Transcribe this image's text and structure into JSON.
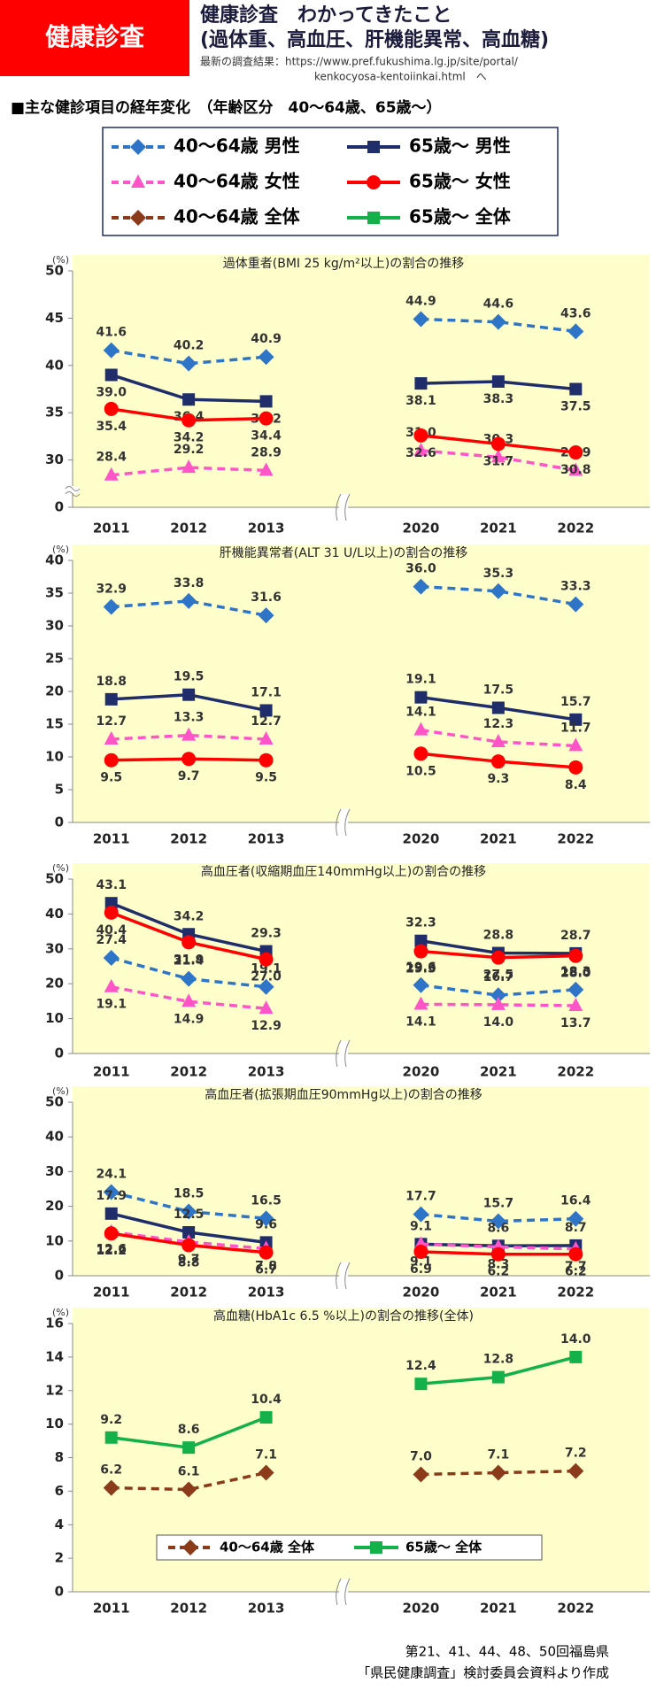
{
  "header": {
    "badge": "健康診査",
    "title": [
      "健康診査　わかってきたこと",
      "(過体重、高血圧、肝機能異常、高血糖)"
    ],
    "link": [
      "最新の調査結果：https://www.pref.fukushima.lg.jp/site/portal/",
      "kenkocyosa-kentoiinkai.html　へ"
    ]
  },
  "section_title": "■主な健診項目の経年変化　（年齢区分　40～64歳、65歳～）",
  "footer": [
    "第21、41、44、48、50回福島県",
    "「県民健康調査」検討委員会資料より作成"
  ],
  "chart_data": [
    {
      "type": "line",
      "title": "過体重者(BMI 25 kg/m²以上)の割合の推移",
      "y_unit": "(%)",
      "categories": [
        "2011",
        "2012",
        "2013",
        null,
        "2020",
        "2021",
        "2022"
      ],
      "ylim": [
        0,
        50
      ],
      "y_break": [
        0,
        25
      ],
      "yticks": [
        0,
        30,
        35,
        40,
        45,
        50
      ],
      "grid": false,
      "series": [
        {
          "name": "40～64歳 男性",
          "color": "#2e75c8",
          "marker": "diamond",
          "dash": true,
          "values": [
            41.6,
            40.2,
            40.9,
            null,
            44.9,
            44.6,
            43.6
          ],
          "value_labels": [
            "41.6",
            "40.2",
            "40.9",
            null,
            "44.9",
            "44.6",
            "43.6"
          ]
        },
        {
          "name": "65歳～ 男性",
          "color": "#1f2d6b",
          "marker": "square",
          "dash": false,
          "values": [
            39.0,
            36.4,
            36.2,
            null,
            38.1,
            38.3,
            37.5
          ],
          "value_labels": [
            "39.0",
            "36.4",
            "36.2",
            null,
            "38.1",
            "38.3",
            "37.5"
          ]
        },
        {
          "name": "40～64歳 女性",
          "color": "#ff55c8",
          "marker": "triangle",
          "dash": true,
          "values": [
            28.4,
            29.2,
            28.9,
            null,
            31.0,
            30.3,
            28.9
          ],
          "value_labels": [
            "28.4",
            "29.2",
            "28.9",
            null,
            "31.0",
            "30.3",
            "28.9"
          ]
        },
        {
          "name": "65歳～ 女性",
          "color": "#ff0000",
          "marker": "circle",
          "dash": false,
          "values": [
            35.4,
            34.2,
            34.4,
            null,
            32.6,
            31.7,
            30.8
          ],
          "value_labels": [
            "35.4",
            "34.2",
            "34.4",
            null,
            "32.6",
            "31.7",
            "30.8"
          ]
        }
      ]
    },
    {
      "type": "line",
      "title": "肝機能異常者(ALT 31 U/L以上)の割合の推移",
      "y_unit": "(%)",
      "categories": [
        "2011",
        "2012",
        "2013",
        null,
        "2020",
        "2021",
        "2022"
      ],
      "ylim": [
        0,
        40
      ],
      "yticks": [
        0,
        5,
        10,
        15,
        20,
        25,
        30,
        35,
        40
      ],
      "grid": false,
      "series": [
        {
          "color": "#2e75c8",
          "marker": "diamond",
          "dash": true,
          "values": [
            32.9,
            33.8,
            31.6,
            null,
            36.0,
            35.3,
            33.3
          ],
          "value_labels": [
            "32.9",
            "33.8",
            "31.6",
            null,
            "36.0",
            "35.3",
            "33.3"
          ]
        },
        {
          "color": "#1f2d6b",
          "marker": "square",
          "dash": false,
          "values": [
            18.8,
            19.5,
            17.1,
            null,
            19.1,
            17.5,
            15.7
          ],
          "value_labels": [
            "18.8",
            "19.5",
            "17.1",
            null,
            "19.1",
            "17.5",
            "15.7"
          ]
        },
        {
          "color": "#ff55c8",
          "marker": "triangle",
          "dash": true,
          "values": [
            12.7,
            13.3,
            12.7,
            null,
            14.1,
            12.3,
            11.7
          ],
          "value_labels": [
            "12.7",
            "13.3",
            "12.7",
            null,
            "14.1",
            "12.3",
            "11.7"
          ]
        },
        {
          "color": "#ff0000",
          "marker": "circle",
          "dash": false,
          "values": [
            9.5,
            9.7,
            9.5,
            null,
            10.5,
            9.3,
            8.4
          ],
          "value_labels": [
            "9.5",
            "9.7",
            "9.5",
            null,
            "10.5",
            "9.3",
            "8.4"
          ]
        }
      ]
    },
    {
      "type": "line",
      "title": "高血圧者(収縮期血圧140mmHg以上)の割合の推移",
      "y_unit": "(%)",
      "categories": [
        "2011",
        "2012",
        "2013",
        null,
        "2020",
        "2021",
        "2022"
      ],
      "ylim": [
        0,
        50
      ],
      "yticks": [
        0,
        10,
        20,
        30,
        40,
        50
      ],
      "grid": false,
      "series": [
        {
          "color": "#2e75c8",
          "marker": "diamond",
          "dash": true,
          "values": [
            27.4,
            21.4,
            19.1,
            null,
            19.6,
            16.7,
            18.3
          ],
          "value_labels": [
            "27.4",
            "21.4",
            "19.1",
            null,
            "19.6",
            "16.7",
            "18.3"
          ]
        },
        {
          "color": "#1f2d6b",
          "marker": "square",
          "dash": false,
          "values": [
            43.1,
            34.2,
            29.3,
            null,
            32.3,
            28.8,
            28.7
          ],
          "value_labels": [
            "43.1",
            "34.2",
            "29.3",
            null,
            "32.3",
            "28.8",
            "28.7"
          ]
        },
        {
          "color": "#ff55c8",
          "marker": "triangle",
          "dash": true,
          "values": [
            19.1,
            14.9,
            12.9,
            null,
            14.1,
            14.0,
            13.7
          ],
          "value_labels": [
            "19.1",
            "14.9",
            "12.9",
            null,
            "14.1",
            "14.0",
            "13.7"
          ]
        },
        {
          "color": "#ff0000",
          "marker": "circle",
          "dash": false,
          "values": [
            40.4,
            31.9,
            27.0,
            null,
            29.3,
            27.5,
            28.0
          ],
          "value_labels": [
            "40.4",
            "31.9",
            "27.0",
            null,
            "29.3",
            "27.5",
            "28.0"
          ]
        }
      ]
    },
    {
      "type": "line",
      "title": "高血圧者(拡張期血圧90mmHg以上)の割合の推移",
      "y_unit": "(%)",
      "categories": [
        "2011",
        "2012",
        "2013",
        null,
        "2020",
        "2021",
        "2022"
      ],
      "ylim": [
        0,
        50
      ],
      "yticks": [
        0,
        10,
        20,
        30,
        40,
        50
      ],
      "grid": false,
      "series": [
        {
          "color": "#2e75c8",
          "marker": "diamond",
          "dash": true,
          "values": [
            24.1,
            18.5,
            16.5,
            null,
            17.7,
            15.7,
            16.4
          ],
          "value_labels": [
            "24.1",
            "18.5",
            "16.5",
            null,
            "17.7",
            "15.7",
            "16.4"
          ]
        },
        {
          "color": "#1f2d6b",
          "marker": "square",
          "dash": false,
          "values": [
            17.9,
            12.5,
            9.6,
            null,
            9.1,
            8.6,
            8.7
          ],
          "value_labels": [
            "17.9",
            "12.5",
            "9.6",
            null,
            "9.1",
            "8.6",
            "8.7"
          ]
        },
        {
          "color": "#ff55c8",
          "marker": "triangle",
          "dash": true,
          "values": [
            12.6,
            9.7,
            7.8,
            null,
            9.1,
            8.3,
            7.7
          ],
          "value_labels": [
            "12.6",
            "9.7",
            "7.8",
            null,
            "9.1",
            "8.3",
            "7.7"
          ]
        },
        {
          "color": "#ff0000",
          "marker": "circle",
          "dash": false,
          "values": [
            12.2,
            8.8,
            6.7,
            null,
            6.9,
            6.2,
            6.2
          ],
          "value_labels": [
            "12.2",
            "8.8",
            "6.7",
            null,
            "6.9",
            "6.2",
            "6.2"
          ]
        }
      ]
    },
    {
      "type": "line",
      "title": "高血糖(HbA1c 6.5 %以上)の割合の推移(全体)",
      "y_unit": "(%)",
      "categories": [
        "2011",
        "2012",
        "2013",
        null,
        "2020",
        "2021",
        "2022"
      ],
      "ylim": [
        0,
        16
      ],
      "yticks": [
        0,
        2,
        4,
        6,
        8,
        10,
        12,
        14,
        16
      ],
      "grid": false,
      "legend": "bottom",
      "series": [
        {
          "name": "40～64歳 全体",
          "color": "#8b3a1a",
          "marker": "diamond",
          "dash": true,
          "values": [
            6.2,
            6.1,
            7.1,
            null,
            7.0,
            7.1,
            7.2
          ],
          "value_labels": [
            "6.2",
            "6.1",
            "7.1",
            null,
            "7.0",
            "7.1",
            "7.2"
          ]
        },
        {
          "name": "65歳～ 全体",
          "color": "#14b04a",
          "marker": "square",
          "dash": false,
          "values": [
            9.2,
            8.6,
            10.4,
            null,
            12.4,
            12.8,
            14.0
          ],
          "value_labels": [
            "9.2",
            "8.6",
            "10.4",
            null,
            "12.4",
            "12.8",
            "14.0"
          ]
        }
      ]
    }
  ]
}
